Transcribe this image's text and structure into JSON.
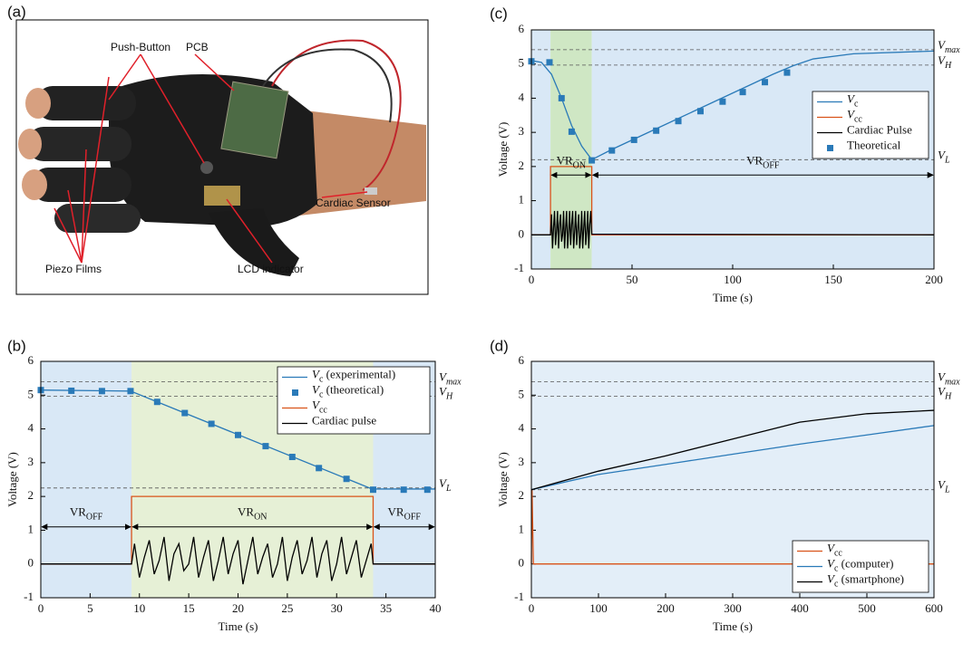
{
  "photo": {
    "panel": "(a)",
    "labels": [
      "Push-Button",
      "PCB",
      "Cardiac Sensor",
      "Piezo Films",
      "LCD indicator"
    ]
  },
  "chart_data": [
    {
      "type": "line",
      "panel": "(b)",
      "xlabel": "Time (s)",
      "ylabel": "Voltage (V)",
      "xlim": [
        0,
        40
      ],
      "ylim": [
        -1,
        6
      ],
      "xticks": [
        0,
        5,
        10,
        15,
        20,
        25,
        30,
        35,
        40
      ],
      "yticks": [
        -1,
        0,
        1,
        2,
        3,
        4,
        5,
        6
      ],
      "legend": "upper right",
      "regions": [
        {
          "start": 0,
          "end": 9.2,
          "color": "#d9e8f6"
        },
        {
          "start": 9.2,
          "end": 33.7,
          "color": "#e6f0d6"
        },
        {
          "start": 33.7,
          "end": 40,
          "color": "#d9e8f6"
        }
      ],
      "ref_lines": [
        {
          "value": 5.4,
          "symbol": "V",
          "sub": "max"
        },
        {
          "value": 4.97,
          "symbol": "V",
          "sub": "H"
        },
        {
          "value": 2.25,
          "symbol": "V",
          "sub": "L"
        }
      ],
      "annotations": [
        {
          "text": "VR",
          "sub": "OFF",
          "x": [
            0,
            9.2
          ],
          "y": 1.1
        },
        {
          "text": "VR",
          "sub": "ON",
          "x": [
            9.2,
            33.7
          ],
          "y": 1.1
        },
        {
          "text": "VR",
          "sub": "OFF",
          "x": [
            33.7,
            40
          ],
          "y": 1.1
        }
      ],
      "series": [
        {
          "name": "V",
          "sub": "c",
          "suffix": " (experimental)",
          "color": "#2a7ab8",
          "kind": "line",
          "x": [
            0,
            9.1,
            33.6,
            40
          ],
          "values": [
            5.15,
            5.12,
            2.22,
            2.22
          ]
        },
        {
          "name": "V",
          "sub": "c",
          "suffix": " (theoretical)",
          "color": "#2a7ab8",
          "kind": "marker",
          "x": [
            0,
            3.1,
            6.2,
            9.1,
            11.8,
            14.6,
            17.3,
            20,
            22.8,
            25.5,
            28.2,
            31,
            33.7,
            36.8,
            39.2
          ],
          "values": [
            5.15,
            5.13,
            5.12,
            5.12,
            4.8,
            4.47,
            4.15,
            3.82,
            3.49,
            3.17,
            2.84,
            2.52,
            2.2,
            2.2,
            2.2
          ]
        },
        {
          "name": "V",
          "sub": "cc",
          "color": "#d95319",
          "kind": "line",
          "x": [
            0,
            9.2,
            9.2,
            33.7,
            33.7,
            40
          ],
          "values": [
            0,
            0,
            2,
            2,
            0,
            0
          ]
        },
        {
          "name": "Cardiac pulse",
          "color": "#000000",
          "kind": "line",
          "x": [
            0,
            9.2,
            9.5,
            10,
            10.5,
            11,
            11.5,
            12,
            12.5,
            13,
            13.5,
            14,
            14.5,
            15,
            15.5,
            16,
            16.5,
            17,
            17.5,
            18,
            18.5,
            19,
            19.5,
            20,
            20.5,
            21,
            21.5,
            22,
            22.5,
            23,
            23.5,
            24,
            24.5,
            25,
            25.5,
            26,
            26.5,
            27,
            27.5,
            28,
            28.5,
            29,
            29.5,
            30,
            30.5,
            31,
            31.5,
            32,
            32.5,
            33,
            33.5,
            33.7,
            40
          ],
          "values": [
            0,
            0,
            0.6,
            -0.4,
            0.2,
            0.7,
            -0.3,
            0.1,
            0.8,
            -0.5,
            0.3,
            0.6,
            -0.2,
            0.0,
            0.8,
            -0.4,
            0.2,
            0.7,
            -0.5,
            0.1,
            0.8,
            -0.3,
            0.3,
            0.7,
            -0.6,
            0.1,
            0.8,
            -0.3,
            0.2,
            0.6,
            -0.4,
            0.0,
            0.8,
            -0.5,
            0.2,
            0.7,
            -0.3,
            0.1,
            0.8,
            -0.4,
            0.3,
            0.7,
            -0.5,
            0.0,
            0.8,
            -0.3,
            0.2,
            0.7,
            -0.4,
            0.1,
            0.6,
            0,
            0
          ]
        }
      ]
    },
    {
      "type": "line",
      "panel": "(c)",
      "xlabel": "Time (s)",
      "ylabel": "Voltage (V)",
      "xlim": [
        0,
        200
      ],
      "ylim": [
        -1,
        6
      ],
      "xticks": [
        0,
        50,
        100,
        150,
        200
      ],
      "yticks": [
        -1,
        0,
        1,
        2,
        3,
        4,
        5,
        6
      ],
      "legend": "center right",
      "regions": [
        {
          "start": 0,
          "end": 9.5,
          "color": "#d9e8f6"
        },
        {
          "start": 9.5,
          "end": 30,
          "color": "#cfe7c4"
        },
        {
          "start": 30,
          "end": 200,
          "color": "#d9e8f6"
        }
      ],
      "ref_lines": [
        {
          "value": 5.42,
          "symbol": "V",
          "sub": "max"
        },
        {
          "value": 4.97,
          "symbol": "V",
          "sub": "H"
        },
        {
          "value": 2.2,
          "symbol": "V",
          "sub": "L"
        }
      ],
      "annotations": [
        {
          "text": "VR",
          "sub": "ON",
          "x": [
            9.5,
            30
          ],
          "y": 1.75
        },
        {
          "text": "VR",
          "sub": "OFF",
          "x": [
            30,
            200
          ],
          "y": 1.75
        }
      ],
      "series": [
        {
          "name": "V",
          "sub": "c",
          "color": "#2a7ab8",
          "kind": "line",
          "x": [
            0,
            5,
            10,
            15,
            20,
            25,
            30,
            40,
            60,
            80,
            100,
            120,
            130,
            140,
            160,
            200
          ],
          "values": [
            5.1,
            5.05,
            4.7,
            4.0,
            3.2,
            2.6,
            2.2,
            2.5,
            3.05,
            3.6,
            4.15,
            4.7,
            4.95,
            5.15,
            5.3,
            5.38
          ]
        },
        {
          "name": "V",
          "sub": "cc",
          "color": "#d95319",
          "kind": "line",
          "x": [
            0,
            9.5,
            9.5,
            30,
            30,
            200
          ],
          "values": [
            0,
            0,
            2,
            2,
            0,
            0
          ]
        },
        {
          "name": "Cardiac Pulse",
          "color": "#000000",
          "kind": "line",
          "x": [
            0,
            9.5,
            10,
            10.5,
            11,
            11.5,
            12,
            12.5,
            13,
            13.5,
            14,
            14.5,
            15,
            15.5,
            16,
            16.5,
            17,
            17.5,
            18,
            18.5,
            19,
            19.5,
            20,
            20.5,
            21,
            21.5,
            22,
            22.5,
            23,
            23.5,
            24,
            24.5,
            25,
            25.5,
            26,
            26.5,
            27,
            27.5,
            28,
            28.5,
            29,
            29.5,
            30,
            200
          ],
          "values": [
            0,
            0,
            0.6,
            -0.4,
            0.2,
            0.7,
            -0.3,
            0.1,
            0.7,
            -0.4,
            0.3,
            0.6,
            -0.2,
            0.0,
            0.7,
            -0.4,
            0.2,
            0.7,
            -0.4,
            0.1,
            0.7,
            -0.3,
            0.3,
            0.7,
            -0.4,
            0.1,
            0.7,
            -0.3,
            0.2,
            0.6,
            -0.4,
            0.0,
            0.7,
            -0.4,
            0.2,
            0.7,
            -0.3,
            0.1,
            0.7,
            -0.4,
            0.3,
            0.7,
            0.02,
            0
          ]
        },
        {
          "name": "Theoretical",
          "color": "#2a7ab8",
          "kind": "marker",
          "x": [
            0,
            9,
            15,
            20,
            30,
            40,
            51,
            62,
            73,
            84,
            95,
            105,
            116,
            127
          ],
          "values": [
            5.08,
            5.05,
            4.0,
            3.02,
            2.18,
            2.47,
            2.78,
            3.05,
            3.33,
            3.62,
            3.9,
            4.18,
            4.47,
            4.75
          ]
        }
      ]
    },
    {
      "type": "line",
      "panel": "(d)",
      "xlabel": "Time (s)",
      "ylabel": "Voltage (V)",
      "xlim": [
        0,
        600
      ],
      "ylim": [
        -1,
        6
      ],
      "xticks": [
        0,
        100,
        200,
        300,
        400,
        500,
        600
      ],
      "yticks": [
        -1,
        0,
        1,
        2,
        3,
        4,
        5,
        6
      ],
      "legend": "lower right",
      "regions": [
        {
          "start": 0,
          "end": 600,
          "color": "#e3eef8"
        }
      ],
      "ref_lines": [
        {
          "value": 5.4,
          "symbol": "V",
          "sub": "max"
        },
        {
          "value": 4.97,
          "symbol": "V",
          "sub": "H"
        },
        {
          "value": 2.2,
          "symbol": "V",
          "sub": "L"
        }
      ],
      "annotations": [],
      "series": [
        {
          "name": "V",
          "sub": "cc",
          "color": "#d95319",
          "kind": "line",
          "x": [
            0,
            1,
            3,
            600
          ],
          "values": [
            0,
            2.2,
            0,
            0
          ]
        },
        {
          "name": "V",
          "sub": "c",
          "suffix": " (computer)",
          "color": "#2a7ab8",
          "kind": "line",
          "x": [
            0,
            100,
            200,
            300,
            400,
            500,
            600
          ],
          "values": [
            2.2,
            2.65,
            2.95,
            3.25,
            3.55,
            3.82,
            4.1
          ]
        },
        {
          "name": "V",
          "sub": "c",
          "suffix": " (smartphone)",
          "color": "#000000",
          "kind": "line",
          "x": [
            0,
            100,
            200,
            300,
            400,
            500,
            600
          ],
          "values": [
            2.2,
            2.75,
            3.2,
            3.7,
            4.2,
            4.45,
            4.55
          ]
        }
      ]
    }
  ]
}
